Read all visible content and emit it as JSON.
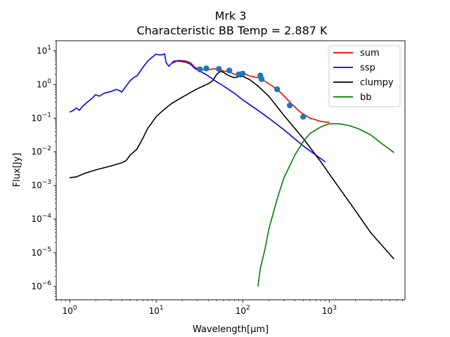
{
  "chart_data": {
    "type": "line",
    "title": "Mrk 3",
    "subtitle": "Characteristic BB Temp = 2.887 K",
    "xlabel": "Wavelength[μm]",
    "ylabel": "Flux[Jy]",
    "xscale": "log",
    "yscale": "log",
    "xlim": [
      0.7,
      7500
    ],
    "ylim": [
      4e-07,
      20
    ],
    "x_tick_labels": [
      {
        "base": "10",
        "exp": "0",
        "value": 1
      },
      {
        "base": "10",
        "exp": "1",
        "value": 10
      },
      {
        "base": "10",
        "exp": "2",
        "value": 100
      },
      {
        "base": "10",
        "exp": "3",
        "value": 1000
      }
    ],
    "y_tick_labels": [
      {
        "base": "10",
        "exp": "1",
        "value": 10
      },
      {
        "base": "10",
        "exp": "0",
        "value": 1
      },
      {
        "base": "10",
        "exp": "−1",
        "value": 0.1
      },
      {
        "base": "10",
        "exp": "−2",
        "value": 0.01
      },
      {
        "base": "10",
        "exp": "−3",
        "value": 0.001
      },
      {
        "base": "10",
        "exp": "−4",
        "value": 0.0001
      },
      {
        "base": "10",
        "exp": "−5",
        "value": 1e-05
      },
      {
        "base": "10",
        "exp": "−6",
        "value": 1e-06
      }
    ],
    "legend_position": "top-right",
    "grid": false,
    "series": [
      {
        "name": "sum",
        "color": "#ff0000",
        "points": [
          [
            15,
            4.2
          ],
          [
            18,
            5.2
          ],
          [
            22,
            5.0
          ],
          [
            25,
            4.4
          ],
          [
            28,
            3.2
          ],
          [
            32,
            2.9
          ],
          [
            38,
            2.7
          ],
          [
            45,
            2.9
          ],
          [
            52,
            2.9
          ],
          [
            60,
            2.5
          ],
          [
            70,
            2.4
          ],
          [
            80,
            2.0
          ],
          [
            90,
            2.1
          ],
          [
            100,
            2.2
          ],
          [
            120,
            1.8
          ],
          [
            150,
            1.6
          ],
          [
            180,
            1.25
          ],
          [
            220,
            0.9
          ],
          [
            280,
            0.55
          ],
          [
            350,
            0.3
          ],
          [
            450,
            0.16
          ],
          [
            600,
            0.1
          ],
          [
            800,
            0.08
          ],
          [
            1000,
            0.075
          ]
        ]
      },
      {
        "name": "ssp",
        "color": "#0000ff",
        "points": [
          [
            1.0,
            0.15
          ],
          [
            1.1,
            0.17
          ],
          [
            1.2,
            0.2
          ],
          [
            1.3,
            0.17
          ],
          [
            1.4,
            0.22
          ],
          [
            1.6,
            0.3
          ],
          [
            1.8,
            0.38
          ],
          [
            2.0,
            0.5
          ],
          [
            2.2,
            0.45
          ],
          [
            2.5,
            0.55
          ],
          [
            3.0,
            0.62
          ],
          [
            3.5,
            0.72
          ],
          [
            4.0,
            0.6
          ],
          [
            4.5,
            0.9
          ],
          [
            5.0,
            1.3
          ],
          [
            5.5,
            1.6
          ],
          [
            6.0,
            1.8
          ],
          [
            6.5,
            2.4
          ],
          [
            7.0,
            3.2
          ],
          [
            8.0,
            5.0
          ],
          [
            9.0,
            6.5
          ],
          [
            10.0,
            8.0
          ],
          [
            11.0,
            7.5
          ],
          [
            12.0,
            7.8
          ],
          [
            12.5,
            8.2
          ],
          [
            13.0,
            4.5
          ],
          [
            14.0,
            3.5
          ],
          [
            15.0,
            4.2
          ],
          [
            16,
            5.0
          ],
          [
            18,
            5.0
          ],
          [
            22,
            4.6
          ],
          [
            25,
            4.0
          ],
          [
            28,
            3.0
          ],
          [
            32,
            2.5
          ],
          [
            40,
            1.8
          ],
          [
            50,
            1.2
          ],
          [
            60,
            0.9
          ],
          [
            80,
            0.55
          ],
          [
            100,
            0.35
          ],
          [
            150,
            0.17
          ],
          [
            200,
            0.1
          ],
          [
            300,
            0.045
          ],
          [
            500,
            0.015
          ],
          [
            700,
            0.008
          ],
          [
            900,
            0.005
          ]
        ]
      },
      {
        "name": "clumpy",
        "color": "#000000",
        "points": [
          [
            1.0,
            0.0017
          ],
          [
            1.2,
            0.0018
          ],
          [
            1.5,
            0.0023
          ],
          [
            2.0,
            0.0029
          ],
          [
            3.0,
            0.0038
          ],
          [
            4.0,
            0.0047
          ],
          [
            4.5,
            0.0055
          ],
          [
            5.0,
            0.008
          ],
          [
            6.0,
            0.012
          ],
          [
            7.0,
            0.025
          ],
          [
            8.0,
            0.05
          ],
          [
            10,
            0.11
          ],
          [
            12,
            0.17
          ],
          [
            15,
            0.27
          ],
          [
            20,
            0.42
          ],
          [
            25,
            0.58
          ],
          [
            30,
            0.75
          ],
          [
            35,
            0.9
          ],
          [
            40,
            1.05
          ],
          [
            45,
            1.3
          ],
          [
            50,
            2.0
          ],
          [
            55,
            2.45
          ],
          [
            60,
            2.3
          ],
          [
            65,
            2.0
          ],
          [
            70,
            1.8
          ],
          [
            80,
            1.6
          ],
          [
            90,
            1.7
          ],
          [
            100,
            1.75
          ],
          [
            120,
            1.4
          ],
          [
            150,
            0.9
          ],
          [
            200,
            0.45
          ],
          [
            300,
            0.12
          ],
          [
            500,
            0.025
          ],
          [
            800,
            0.005
          ],
          [
            1000,
            0.0022
          ],
          [
            2000,
            0.00018
          ],
          [
            3000,
            4e-05
          ],
          [
            5600,
            6.5e-06
          ]
        ]
      },
      {
        "name": "bb",
        "color": "#008000",
        "points": [
          [
            150,
            1e-06
          ],
          [
            160,
            3.5e-06
          ],
          [
            180,
            1.2e-05
          ],
          [
            200,
            5e-05
          ],
          [
            250,
            0.0004
          ],
          [
            300,
            0.0017
          ],
          [
            400,
            0.008
          ],
          [
            500,
            0.02
          ],
          [
            600,
            0.035
          ],
          [
            800,
            0.055
          ],
          [
            1000,
            0.068
          ],
          [
            1300,
            0.068
          ],
          [
            1700,
            0.06
          ],
          [
            2200,
            0.048
          ],
          [
            3000,
            0.032
          ],
          [
            4000,
            0.018
          ],
          [
            5600,
            0.0095
          ]
        ]
      }
    ],
    "observations": {
      "color": "#1f77b4",
      "points": [
        [
          32,
          2.8
        ],
        [
          38,
          3.0
        ],
        [
          53,
          2.9
        ],
        [
          70,
          2.6
        ],
        [
          90,
          2.0
        ],
        [
          100,
          2.1
        ],
        [
          160,
          1.85
        ],
        [
          165,
          1.45
        ],
        [
          250,
          0.72
        ],
        [
          350,
          0.24
        ],
        [
          500,
          0.11
        ]
      ]
    }
  }
}
